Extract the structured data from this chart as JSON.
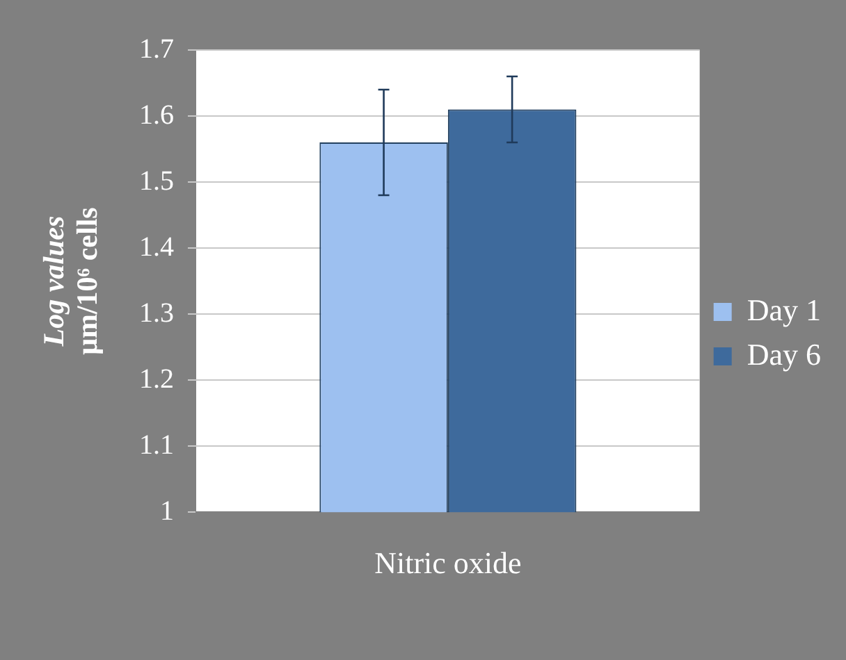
{
  "chart_data": {
    "type": "bar",
    "ylabel": "Log values\nμm/10⁶ cells",
    "categories": [
      "Nitric oxide"
    ],
    "series": [
      {
        "name": "Day 1",
        "color": "#9dc0f0",
        "values": [
          1.56
        ],
        "errors": [
          0.08
        ]
      },
      {
        "name": "Day 6",
        "color": "#3e6a9c",
        "values": [
          1.61
        ],
        "errors": [
          0.05
        ]
      }
    ],
    "ylim": [
      1,
      1.7
    ],
    "yticks": [
      1,
      1.1,
      1.2,
      1.3,
      1.4,
      1.5,
      1.6,
      1.7
    ],
    "grid": "y",
    "legend": "right"
  }
}
